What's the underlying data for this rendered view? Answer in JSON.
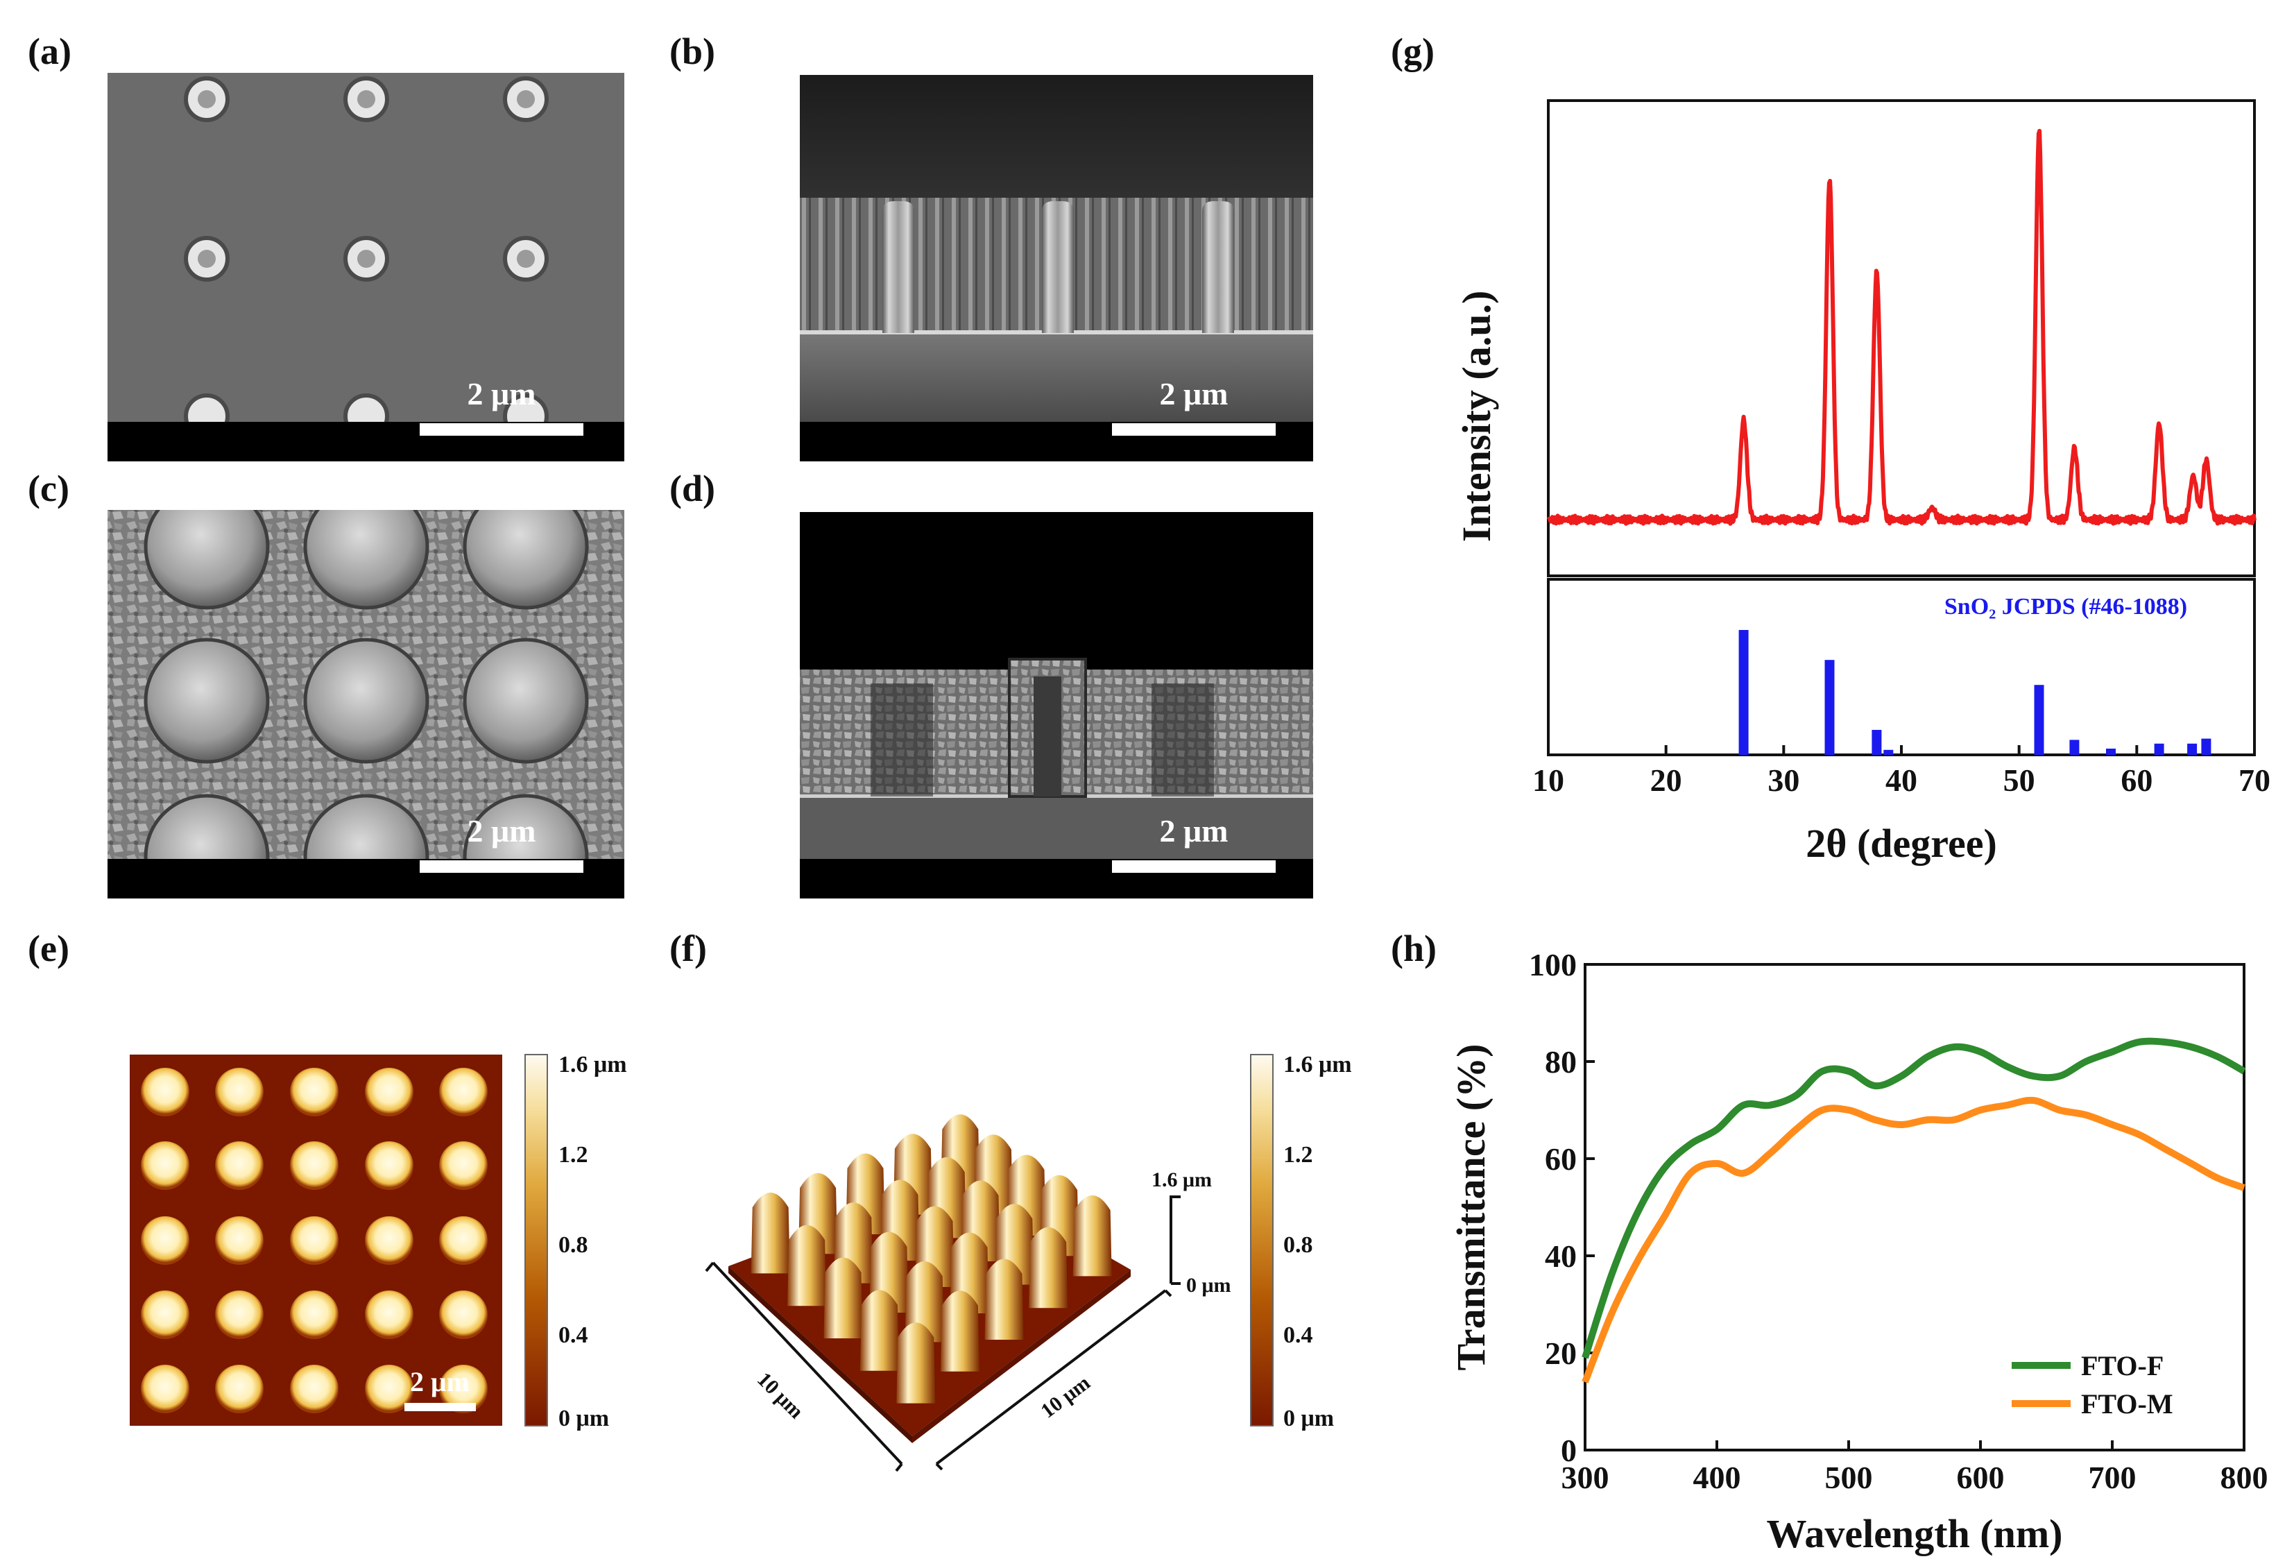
{
  "figure": {
    "panels": {
      "a": {
        "label": "(a)",
        "scale_bar": "2 μm"
      },
      "b": {
        "label": "(b)",
        "scale_bar": "2 μm"
      },
      "c": {
        "label": "(c)",
        "scale_bar": "2 μm"
      },
      "d": {
        "label": "(d)",
        "scale_bar": "2 μm"
      },
      "e": {
        "label": "(e)",
        "scale_bar": "2 μm",
        "colorbar": {
          "ticks": [
            "1.6 μm",
            "1.2",
            "0.8",
            "0.4",
            "0 μm"
          ]
        }
      },
      "f": {
        "label": "(f)",
        "colorbar": {
          "ticks": [
            "1.6 μm",
            "1.2",
            "0.8",
            "0.4",
            "0 μm"
          ]
        },
        "z_axis_top": "1.6 μm",
        "z_axis_bottom": "0 μm",
        "x_axis": "10 μm",
        "y_axis": "10 μm"
      }
    },
    "colors": {
      "xrd": "#ee1c1c",
      "ref": "#1a1aee",
      "fto_f": "#2e8b2e",
      "fto_m": "#ff8c1a",
      "afm_dark": "#7a1800",
      "afm_light": "#fff6d0"
    }
  },
  "chart_data": [
    {
      "id": "g",
      "label": "(g)",
      "type": "line",
      "title": "",
      "xlabel": "2θ (degree)",
      "ylabel": "Intensity (a.u.)",
      "xlim": [
        10,
        70
      ],
      "x_ticks": [
        10,
        20,
        30,
        40,
        50,
        60,
        70
      ],
      "y_ticks": [],
      "baseline": 0.05,
      "peaks": [
        {
          "x": 26.6,
          "h": 0.25
        },
        {
          "x": 33.9,
          "h": 0.85
        },
        {
          "x": 37.9,
          "h": 0.62
        },
        {
          "x": 42.6,
          "h": 0.03
        },
        {
          "x": 51.7,
          "h": 0.97
        },
        {
          "x": 54.7,
          "h": 0.18
        },
        {
          "x": 61.9,
          "h": 0.24
        },
        {
          "x": 64.8,
          "h": 0.11
        },
        {
          "x": 65.9,
          "h": 0.15
        }
      ],
      "reference": {
        "name": "SnO₂ JCPDS (#46-1088)",
        "lines": [
          {
            "x": 26.6,
            "h": 1.0
          },
          {
            "x": 33.9,
            "h": 0.76
          },
          {
            "x": 37.9,
            "h": 0.2
          },
          {
            "x": 38.9,
            "h": 0.04
          },
          {
            "x": 51.7,
            "h": 0.56
          },
          {
            "x": 54.7,
            "h": 0.12
          },
          {
            "x": 57.8,
            "h": 0.05
          },
          {
            "x": 61.9,
            "h": 0.09
          },
          {
            "x": 64.7,
            "h": 0.09
          },
          {
            "x": 65.9,
            "h": 0.13
          }
        ]
      }
    },
    {
      "id": "h",
      "label": "(h)",
      "type": "line",
      "title": "",
      "xlabel": "Wavelength (nm)",
      "ylabel": "Transmittance (%)",
      "xlim": [
        300,
        800
      ],
      "ylim": [
        0,
        100
      ],
      "x_ticks": [
        300,
        400,
        500,
        600,
        700,
        800
      ],
      "y_ticks": [
        0,
        20,
        40,
        60,
        80,
        100
      ],
      "series": [
        {
          "name": "FTO-F",
          "x": [
            300,
            320,
            340,
            360,
            380,
            400,
            420,
            440,
            460,
            480,
            500,
            520,
            540,
            560,
            580,
            600,
            620,
            640,
            660,
            680,
            700,
            720,
            740,
            760,
            780,
            800
          ],
          "y": [
            19,
            36,
            49,
            58,
            63,
            66,
            71,
            71,
            73,
            78,
            78,
            75,
            77,
            81,
            83,
            82,
            79,
            77,
            77,
            80,
            82,
            84,
            84,
            83,
            81,
            78
          ]
        },
        {
          "name": "FTO-M",
          "x": [
            300,
            320,
            340,
            360,
            380,
            400,
            420,
            440,
            460,
            480,
            500,
            520,
            540,
            560,
            580,
            600,
            620,
            640,
            660,
            680,
            700,
            720,
            740,
            760,
            780,
            800
          ],
          "y": [
            14,
            28,
            39,
            48,
            57,
            59,
            57,
            61,
            66,
            70,
            70,
            68,
            67,
            68,
            68,
            70,
            71,
            72,
            70,
            69,
            67,
            65,
            62,
            59,
            56,
            54
          ]
        }
      ]
    }
  ]
}
